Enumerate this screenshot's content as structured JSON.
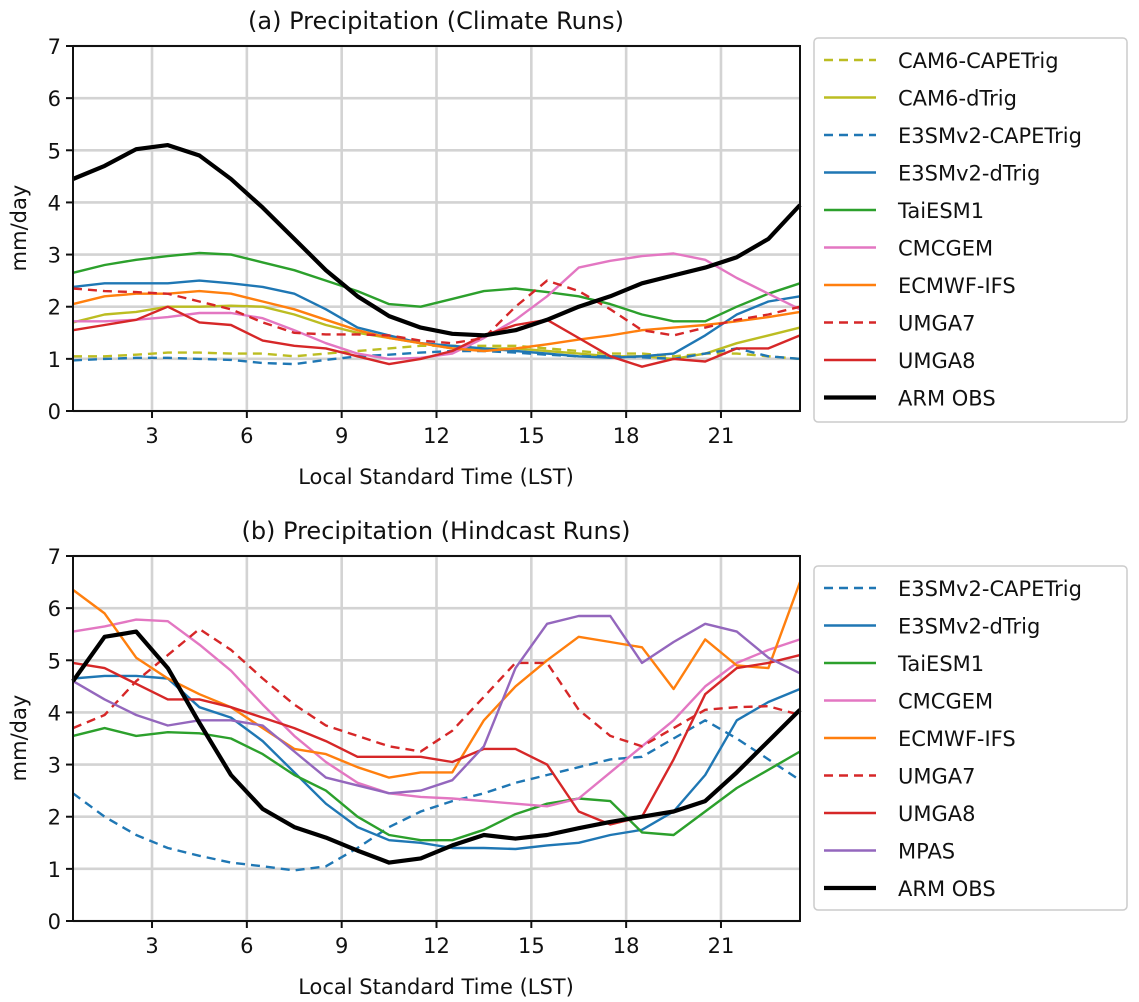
{
  "chart_data": [
    {
      "type": "line",
      "id": "climate",
      "title": "(a) Precipitation (Climate Runs)",
      "xlabel": "Local Standard Time (LST)",
      "ylabel": "mm/day",
      "xlim": [
        0.5,
        23.5
      ],
      "ylim": [
        0,
        7
      ],
      "xticks": [
        3,
        6,
        9,
        12,
        15,
        18,
        21
      ],
      "yticks": [
        0,
        1,
        2,
        3,
        4,
        5,
        6,
        7
      ],
      "grid": true,
      "legend_position": "outside-right",
      "x": [
        0.5,
        1.5,
        2.5,
        3.5,
        4.5,
        5.5,
        6.5,
        7.5,
        8.5,
        9.5,
        10.5,
        11.5,
        12.5,
        13.5,
        14.5,
        15.5,
        16.5,
        17.5,
        18.5,
        19.5,
        20.5,
        21.5,
        22.5,
        23.5
      ],
      "series": [
        {
          "name": "CAM6-CAPETrig",
          "color": "#bcbd22",
          "dash": true,
          "width": 2.4,
          "values": [
            1.05,
            1.05,
            1.08,
            1.12,
            1.12,
            1.1,
            1.1,
            1.05,
            1.1,
            1.15,
            1.2,
            1.25,
            1.25,
            1.25,
            1.25,
            1.2,
            1.15,
            1.1,
            1.1,
            1.05,
            1.1,
            1.1,
            1.05,
            1.0
          ]
        },
        {
          "name": "CAM6-dTrig",
          "color": "#bcbd22",
          "dash": false,
          "width": 2.4,
          "values": [
            1.7,
            1.85,
            1.9,
            2.0,
            2.0,
            2.02,
            2.0,
            1.85,
            1.65,
            1.5,
            1.4,
            1.3,
            1.2,
            1.2,
            1.2,
            1.15,
            1.1,
            1.05,
            1.05,
            1.0,
            1.1,
            1.3,
            1.45,
            1.6
          ]
        },
        {
          "name": "E3SMv2-CAPETrig",
          "color": "#1f77b4",
          "dash": true,
          "width": 2.4,
          "values": [
            0.97,
            1.0,
            1.02,
            1.02,
            1.0,
            0.98,
            0.92,
            0.9,
            0.98,
            1.05,
            1.08,
            1.12,
            1.15,
            1.15,
            1.12,
            1.08,
            1.05,
            1.05,
            1.03,
            1.0,
            1.1,
            1.2,
            1.05,
            1.0
          ]
        },
        {
          "name": "E3SMv2-dTrig",
          "color": "#1f77b4",
          "dash": false,
          "width": 2.4,
          "values": [
            2.38,
            2.45,
            2.45,
            2.45,
            2.5,
            2.45,
            2.38,
            2.25,
            1.95,
            1.6,
            1.45,
            1.3,
            1.25,
            1.2,
            1.15,
            1.1,
            1.05,
            1.02,
            1.05,
            1.1,
            1.45,
            1.85,
            2.1,
            2.2
          ]
        },
        {
          "name": "TaiESM1",
          "color": "#2ca02c",
          "dash": false,
          "width": 2.4,
          "values": [
            2.65,
            2.8,
            2.9,
            2.97,
            3.03,
            3.0,
            2.85,
            2.7,
            2.5,
            2.3,
            2.05,
            2.0,
            2.15,
            2.3,
            2.35,
            2.28,
            2.2,
            2.05,
            1.85,
            1.72,
            1.72,
            2.0,
            2.25,
            2.45
          ]
        },
        {
          "name": "CMCGEM",
          "color": "#e377c2",
          "dash": false,
          "width": 2.4,
          "values": [
            1.72,
            1.72,
            1.75,
            1.8,
            1.88,
            1.88,
            1.78,
            1.55,
            1.3,
            1.1,
            1.0,
            1.02,
            1.1,
            1.4,
            1.75,
            2.2,
            2.75,
            2.88,
            2.97,
            3.02,
            2.9,
            2.55,
            2.25,
            1.95
          ]
        },
        {
          "name": "ECMWF-IFS",
          "color": "#ff7f0e",
          "dash": false,
          "width": 2.4,
          "values": [
            2.05,
            2.2,
            2.25,
            2.25,
            2.3,
            2.25,
            2.1,
            1.95,
            1.75,
            1.55,
            1.4,
            1.3,
            1.2,
            1.15,
            1.2,
            1.28,
            1.37,
            1.45,
            1.55,
            1.6,
            1.65,
            1.72,
            1.8,
            1.9
          ]
        },
        {
          "name": "UMGA7",
          "color": "#d62728",
          "dash": true,
          "width": 2.4,
          "values": [
            2.35,
            2.3,
            2.28,
            2.25,
            2.1,
            1.95,
            1.7,
            1.5,
            1.47,
            1.47,
            1.45,
            1.35,
            1.3,
            1.4,
            2.0,
            2.5,
            2.3,
            1.95,
            1.55,
            1.45,
            1.6,
            1.75,
            1.85,
            2.0
          ]
        },
        {
          "name": "UMGA8",
          "color": "#d62728",
          "dash": false,
          "width": 2.4,
          "values": [
            1.55,
            1.65,
            1.75,
            2.0,
            1.7,
            1.65,
            1.35,
            1.25,
            1.2,
            1.05,
            0.9,
            1.0,
            1.15,
            1.45,
            1.65,
            1.75,
            1.4,
            1.05,
            0.85,
            1.0,
            0.95,
            1.2,
            1.2,
            1.45
          ]
        },
        {
          "name": "ARM OBS",
          "color": "#000000",
          "dash": false,
          "width": 4.2,
          "values": [
            4.45,
            4.7,
            5.02,
            5.1,
            4.9,
            4.45,
            3.9,
            3.3,
            2.7,
            2.2,
            1.82,
            1.6,
            1.48,
            1.45,
            1.55,
            1.75,
            2.0,
            2.2,
            2.45,
            2.6,
            2.75,
            2.95,
            3.3,
            3.95
          ]
        }
      ]
    },
    {
      "type": "line",
      "id": "hindcast",
      "title": "(b) Precipitation (Hindcast Runs)",
      "xlabel": "Local Standard Time (LST)",
      "ylabel": "mm/day",
      "xlim": [
        0.5,
        23.5
      ],
      "ylim": [
        0,
        7
      ],
      "xticks": [
        3,
        6,
        9,
        12,
        15,
        18,
        21
      ],
      "yticks": [
        0,
        1,
        2,
        3,
        4,
        5,
        6,
        7
      ],
      "grid": true,
      "legend_position": "outside-right",
      "x": [
        0.5,
        1.5,
        2.5,
        3.5,
        4.5,
        5.5,
        6.5,
        7.5,
        8.5,
        9.5,
        10.5,
        11.5,
        12.5,
        13.5,
        14.5,
        15.5,
        16.5,
        17.5,
        18.5,
        19.5,
        20.5,
        21.5,
        22.5,
        23.5
      ],
      "series": [
        {
          "name": "E3SMv2-CAPETrig",
          "color": "#1f77b4",
          "dash": true,
          "width": 2.4,
          "values": [
            2.45,
            2.0,
            1.65,
            1.4,
            1.25,
            1.12,
            1.05,
            0.97,
            1.05,
            1.4,
            1.8,
            2.1,
            2.3,
            2.45,
            2.65,
            2.8,
            2.95,
            3.1,
            3.15,
            3.5,
            3.85,
            3.5,
            3.1,
            2.7
          ]
        },
        {
          "name": "E3SMv2-dTrig",
          "color": "#1f77b4",
          "dash": false,
          "width": 2.4,
          "values": [
            4.65,
            4.7,
            4.7,
            4.65,
            4.1,
            3.9,
            3.45,
            2.85,
            2.25,
            1.8,
            1.55,
            1.5,
            1.4,
            1.4,
            1.38,
            1.45,
            1.5,
            1.65,
            1.75,
            2.1,
            2.8,
            3.85,
            4.2,
            4.45
          ]
        },
        {
          "name": "TaiESM1",
          "color": "#2ca02c",
          "dash": false,
          "width": 2.4,
          "values": [
            3.55,
            3.7,
            3.55,
            3.62,
            3.6,
            3.5,
            3.2,
            2.8,
            2.5,
            2.0,
            1.65,
            1.55,
            1.55,
            1.75,
            2.05,
            2.25,
            2.35,
            2.3,
            1.7,
            1.65,
            2.1,
            2.55,
            2.9,
            3.25
          ]
        },
        {
          "name": "CMCGEM",
          "color": "#e377c2",
          "dash": false,
          "width": 2.4,
          "values": [
            5.55,
            5.65,
            5.78,
            5.75,
            5.3,
            4.8,
            4.15,
            3.55,
            3.05,
            2.65,
            2.45,
            2.38,
            2.35,
            2.3,
            2.25,
            2.2,
            2.35,
            2.85,
            3.35,
            3.85,
            4.5,
            4.95,
            5.2,
            5.4
          ]
        },
        {
          "name": "ECMWF-IFS",
          "color": "#ff7f0e",
          "dash": false,
          "width": 2.4,
          "values": [
            6.35,
            5.9,
            5.05,
            4.65,
            4.35,
            4.1,
            3.7,
            3.3,
            3.2,
            2.95,
            2.75,
            2.85,
            2.85,
            3.85,
            4.5,
            5.0,
            5.45,
            5.35,
            5.25,
            4.45,
            5.4,
            4.9,
            4.85,
            6.5
          ]
        },
        {
          "name": "UMGA7",
          "color": "#d62728",
          "dash": true,
          "width": 2.4,
          "values": [
            3.7,
            3.95,
            4.6,
            5.1,
            5.6,
            5.2,
            4.65,
            4.15,
            3.75,
            3.55,
            3.35,
            3.25,
            3.65,
            4.3,
            4.95,
            4.95,
            4.05,
            3.55,
            3.35,
            3.7,
            4.05,
            4.1,
            4.12,
            3.95
          ]
        },
        {
          "name": "UMGA8",
          "color": "#d62728",
          "dash": false,
          "width": 2.4,
          "values": [
            4.95,
            4.85,
            4.55,
            4.25,
            4.25,
            4.1,
            3.9,
            3.7,
            3.45,
            3.15,
            3.15,
            3.15,
            3.05,
            3.3,
            3.3,
            3.0,
            2.1,
            1.85,
            2.0,
            3.1,
            4.35,
            4.85,
            4.95,
            5.1
          ]
        },
        {
          "name": "MPAS",
          "color": "#9467bd",
          "dash": false,
          "width": 2.4,
          "values": [
            4.6,
            4.25,
            3.95,
            3.75,
            3.85,
            3.85,
            3.75,
            3.25,
            2.75,
            2.6,
            2.45,
            2.5,
            2.7,
            3.35,
            4.85,
            5.7,
            5.85,
            5.85,
            4.95,
            5.35,
            5.7,
            5.55,
            5.05,
            4.75
          ]
        },
        {
          "name": "ARM OBS",
          "color": "#000000",
          "dash": false,
          "width": 4.2,
          "values": [
            4.6,
            5.45,
            5.55,
            4.85,
            3.8,
            2.8,
            2.15,
            1.8,
            1.6,
            1.35,
            1.12,
            1.2,
            1.45,
            1.65,
            1.58,
            1.65,
            1.78,
            1.9,
            2.0,
            2.1,
            2.3,
            2.85,
            3.45,
            4.05
          ]
        }
      ]
    }
  ]
}
